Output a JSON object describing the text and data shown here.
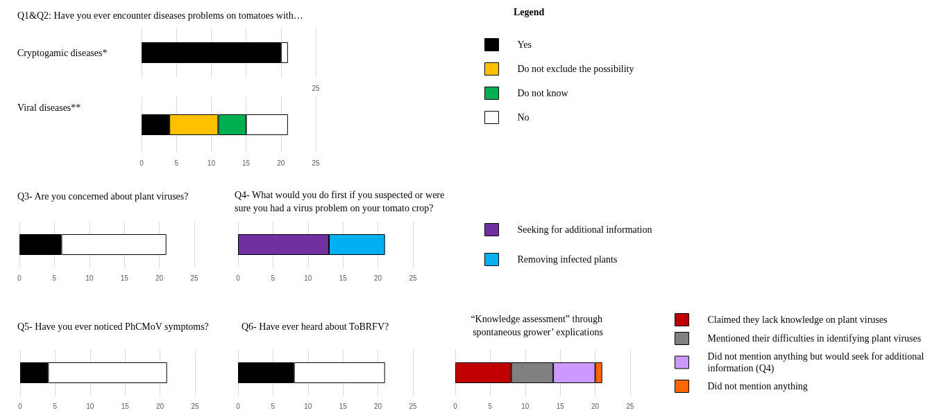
{
  "chart_data": [
    {
      "type": "bar",
      "title": "Q1&Q2: Have you ever encounter diseases problems on tomatoes with…",
      "orientation": "horizontal",
      "stacked": true,
      "categories": [
        "Cryptogamic diseases*"
      ],
      "xlim": [
        0,
        25
      ],
      "xticks": [
        {
          "value": 0,
          "label": null
        },
        {
          "value": 5,
          "label": null
        },
        {
          "value": 10,
          "label": null
        },
        {
          "value": 15,
          "label": null
        },
        {
          "value": 20,
          "label": null
        },
        25
      ],
      "grid": "x",
      "series": [
        {
          "color": "#000000",
          "values": [
            20
          ]
        },
        {
          "color": "#ffffff",
          "values": [
            1
          ]
        }
      ]
    },
    {
      "type": "bar",
      "orientation": "horizontal",
      "stacked": true,
      "categories": [
        "Viral diseases**"
      ],
      "xlim": [
        0,
        25
      ],
      "xticks": [
        0,
        5,
        10,
        15,
        20,
        25
      ],
      "grid": "x",
      "legend": "right",
      "legend_title": "Legend",
      "series": [
        {
          "name": "Yes",
          "color": "#000000",
          "values": [
            4
          ]
        },
        {
          "name": "Do not exclude the possibility",
          "color": "#ffc000",
          "values": [
            7
          ]
        },
        {
          "name": "Do not know",
          "color": "#00b050",
          "values": [
            4
          ]
        },
        {
          "name": "No",
          "color": "#ffffff",
          "values": [
            6
          ]
        }
      ]
    },
    {
      "type": "bar",
      "title": "Q3- Are you concerned about plant viruses?",
      "orientation": "horizontal",
      "stacked": true,
      "categories": [
        null
      ],
      "xlim": [
        0,
        25
      ],
      "xticks": [
        0,
        5,
        10,
        15,
        20,
        25
      ],
      "grid": "x",
      "series": [
        {
          "color": "#000000",
          "values": [
            6
          ]
        },
        {
          "color": "#ffffff",
          "values": [
            15
          ]
        }
      ]
    },
    {
      "type": "bar",
      "title": "Q4- What would you do first if you suspected or were sure you had a virus problem on your tomato crop?",
      "orientation": "horizontal",
      "stacked": true,
      "categories": [
        null
      ],
      "xlim": [
        0,
        25
      ],
      "xticks": [
        0,
        5,
        10,
        15,
        20,
        25
      ],
      "grid": "x",
      "legend": "right",
      "series": [
        {
          "name": "Seeking for additional information",
          "color": "#7030a0",
          "values": [
            13
          ]
        },
        {
          "name": "Removing infected plants",
          "color": "#00b0f0",
          "values": [
            8
          ]
        }
      ]
    },
    {
      "type": "bar",
      "title": "Q5- Have you ever noticed PhCMoV symptoms?",
      "orientation": "horizontal",
      "stacked": true,
      "categories": [
        null
      ],
      "xlim": [
        0,
        25
      ],
      "xticks": [
        0,
        5,
        10,
        15,
        20,
        25
      ],
      "grid": "x",
      "series": [
        {
          "color": "#000000",
          "values": [
            4
          ]
        },
        {
          "color": "#ffffff",
          "values": [
            17
          ]
        }
      ]
    },
    {
      "type": "bar",
      "title": "Q6- Have ever heard about ToBRFV?",
      "orientation": "horizontal",
      "stacked": true,
      "categories": [
        null
      ],
      "xlim": [
        0,
        25
      ],
      "xticks": [
        0,
        5,
        10,
        15,
        20,
        25
      ],
      "grid": "x",
      "series": [
        {
          "color": "#000000",
          "values": [
            8
          ]
        },
        {
          "color": "#ffffff",
          "values": [
            13
          ]
        }
      ]
    },
    {
      "type": "bar",
      "title": "“Knowledge assessment” through spontaneous grower’ explications",
      "orientation": "horizontal",
      "stacked": true,
      "categories": [
        null
      ],
      "xlim": [
        0,
        25
      ],
      "xticks": [
        0,
        5,
        10,
        15,
        20,
        25
      ],
      "grid": "x",
      "legend": "right",
      "series": [
        {
          "name": "Claimed they lack knowledge on plant viruses",
          "color": "#c00000",
          "values": [
            8
          ]
        },
        {
          "name": "Mentioned their difficulties in identifying plant viruses",
          "color": "#808080",
          "values": [
            6
          ]
        },
        {
          "name": "Did not mention anything but would seek for additional information (Q4)",
          "color": "#cc99ff",
          "values": [
            6
          ]
        },
        {
          "name": "Did not mention anything",
          "color": "#ff6600",
          "values": [
            1
          ]
        }
      ]
    }
  ]
}
